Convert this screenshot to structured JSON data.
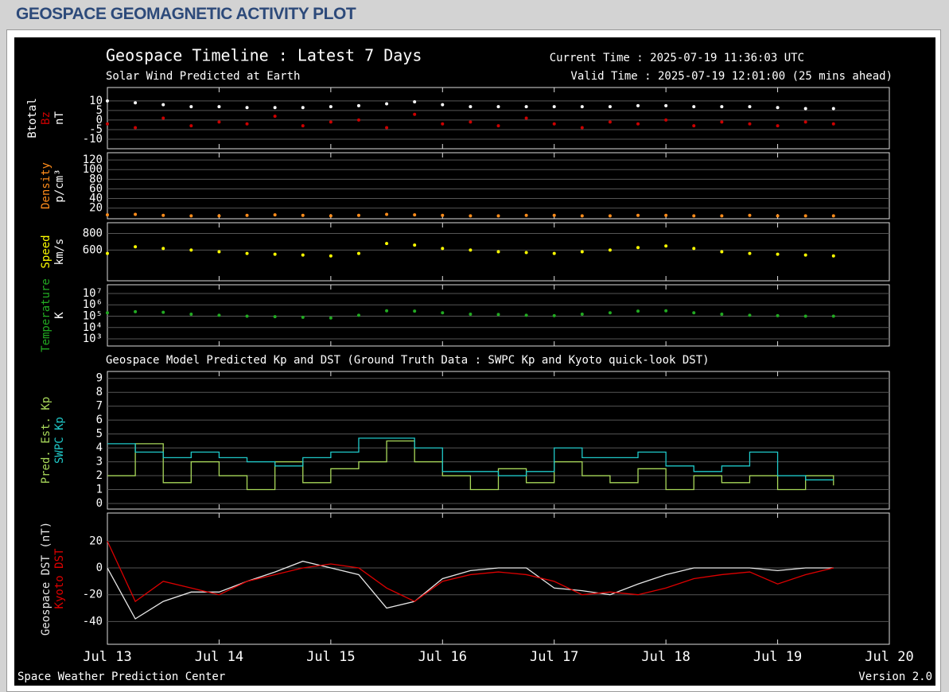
{
  "header": {
    "title": "GEOSPACE GEOMAGNETIC ACTIVITY PLOT"
  },
  "plot": {
    "title": "Geospace Timeline : Latest 7 Days",
    "subtitle": "Solar Wind Predicted at Earth",
    "current_time": "Current Time : 2025-07-19 11:36:03 UTC",
    "valid_time": "Valid Time : 2025-07-19 12:01:00 (25 mins ahead)",
    "section_title": "Geospace Model Predicted Kp and DST (Ground Truth Data : SWPC Kp and Kyoto quick-look DST)",
    "credit": "Space Weather Prediction Center",
    "version": "Version 2.0"
  },
  "chart_data": [
    {
      "type": "scatter",
      "ylabel": "nT",
      "xlim": [
        0,
        7
      ],
      "ylim": [
        -15,
        17
      ],
      "yticks": [
        10,
        5,
        0,
        -5,
        -10
      ],
      "grid": true,
      "x": [
        0,
        0.25,
        0.5,
        0.75,
        1,
        1.25,
        1.5,
        1.75,
        2,
        2.25,
        2.5,
        2.75,
        3,
        3.25,
        3.5,
        3.75,
        4,
        4.25,
        4.5,
        4.75,
        5,
        5.25,
        5.5,
        5.75,
        6,
        6.25,
        6.5
      ],
      "series": [
        {
          "name": "Btotal",
          "color": "#ffffff",
          "values": [
            10,
            9,
            8,
            7,
            7,
            6.5,
            6.5,
            6.5,
            7,
            7.5,
            8.5,
            9.5,
            8,
            7,
            7,
            7,
            7,
            7,
            7,
            7.5,
            7.5,
            7,
            7,
            7,
            6.5,
            6,
            6
          ]
        },
        {
          "name": "Bz",
          "color": "#cc0000",
          "values": [
            -2,
            -4,
            1,
            -3,
            -1,
            -2,
            2,
            -3,
            -1,
            0,
            -4,
            3,
            -2,
            -1,
            -3,
            1,
            -2,
            -4,
            -1,
            -2,
            0,
            -3,
            -1,
            -2,
            -3,
            -1,
            -2
          ]
        }
      ]
    },
    {
      "type": "scatter",
      "xlim": [
        0,
        7
      ],
      "ylim": [
        -2,
        135
      ],
      "yticks": [
        20,
        40,
        60,
        80,
        100,
        120
      ],
      "grid": true,
      "x": [
        0,
        0.25,
        0.5,
        0.75,
        1,
        1.25,
        1.5,
        1.75,
        2,
        2.25,
        2.5,
        2.75,
        3,
        3.25,
        3.5,
        3.75,
        4,
        4.25,
        4.5,
        4.75,
        5,
        5.25,
        5.5,
        5.75,
        6,
        6.25,
        6.5
      ],
      "ylabel": "p/cm³",
      "series": [
        {
          "name": "Density",
          "color": "#ff8c1a",
          "values": [
            6,
            7,
            5,
            4,
            4,
            5,
            6,
            5,
            4,
            5,
            7,
            6,
            5,
            4,
            4,
            5,
            5,
            4,
            4,
            5,
            5,
            4,
            4,
            5,
            4,
            4,
            4
          ]
        }
      ]
    },
    {
      "type": "scatter",
      "xlim": [
        0,
        7
      ],
      "ylim": [
        230,
        930
      ],
      "yticks": [
        600,
        800
      ],
      "grid": true,
      "x": [
        0,
        0.25,
        0.5,
        0.75,
        1,
        1.25,
        1.5,
        1.75,
        2,
        2.25,
        2.5,
        2.75,
        3,
        3.25,
        3.5,
        3.75,
        4,
        4.25,
        4.5,
        4.75,
        5,
        5.25,
        5.5,
        5.75,
        6,
        6.25,
        6.5
      ],
      "ylabel": "km/s",
      "series": [
        {
          "name": "Speed",
          "color": "#ffff00",
          "values": [
            560,
            640,
            620,
            600,
            580,
            560,
            550,
            540,
            530,
            560,
            680,
            660,
            620,
            600,
            580,
            570,
            560,
            580,
            600,
            630,
            650,
            620,
            580,
            560,
            550,
            540,
            530
          ]
        }
      ]
    },
    {
      "type": "scatter",
      "log": true,
      "xlim": [
        0,
        7
      ],
      "ylim": [
        234,
        59000000
      ],
      "yticks": [
        {
          "value": 10000000,
          "label": "10⁷"
        },
        {
          "value": 1000000,
          "label": "10⁶"
        },
        {
          "value": 100000,
          "label": "10⁵"
        },
        {
          "value": 10000,
          "label": "10⁴"
        },
        {
          "value": 1000,
          "label": "10³"
        }
      ],
      "grid": true,
      "x": [
        0,
        0.25,
        0.5,
        0.75,
        1,
        1.25,
        1.5,
        1.75,
        2,
        2.25,
        2.5,
        2.75,
        3,
        3.25,
        3.5,
        3.75,
        4,
        4.25,
        4.5,
        4.75,
        5,
        5.25,
        5.5,
        5.75,
        6,
        6.25,
        6.5
      ],
      "ylabel": "K",
      "series": [
        {
          "name": "Temperature",
          "color": "#22aa22",
          "values": [
            200000,
            250000,
            220000,
            150000,
            120000,
            100000,
            90000,
            80000,
            70000,
            120000,
            300000,
            280000,
            200000,
            150000,
            140000,
            120000,
            110000,
            150000,
            200000,
            280000,
            300000,
            200000,
            150000,
            120000,
            110000,
            100000,
            100000
          ]
        }
      ]
    },
    {
      "type": "line",
      "step": true,
      "xlim": [
        0,
        7
      ],
      "ylim": [
        -0.4,
        9.5
      ],
      "yticks": [
        0,
        1,
        2,
        3,
        4,
        5,
        6,
        7,
        8,
        9
      ],
      "grid": true,
      "x": [
        0,
        0.25,
        0.5,
        0.75,
        1,
        1.25,
        1.5,
        1.75,
        2,
        2.25,
        2.5,
        2.75,
        3,
        3.25,
        3.5,
        3.75,
        4,
        4.25,
        4.5,
        4.75,
        5,
        5.25,
        5.5,
        5.75,
        6,
        6.25,
        6.5
      ],
      "series": [
        {
          "name": "Pred. Est. Kp",
          "color": "#a8d85a",
          "values": [
            2,
            4.3,
            1.5,
            3,
            2,
            1,
            3,
            1.5,
            2.5,
            3,
            4.5,
            3,
            2,
            1,
            2.5,
            1.5,
            3,
            2,
            1.5,
            2.5,
            1,
            2,
            1.5,
            2,
            1,
            2,
            1.3
          ]
        },
        {
          "name": "SWPC Kp",
          "color": "#1fc8c8",
          "values": [
            4.3,
            3.7,
            3.3,
            3.7,
            3.3,
            3,
            2.7,
            3.3,
            3.7,
            4.7,
            4.7,
            4,
            2.3,
            2.3,
            2,
            2.3,
            4,
            3.3,
            3.3,
            3.7,
            2.7,
            2.3,
            2.7,
            3.7,
            2,
            1.7,
            1.7
          ]
        }
      ]
    },
    {
      "type": "line",
      "xlim": [
        0,
        7
      ],
      "ylim": [
        -57,
        41
      ],
      "yticks": [
        20,
        0,
        -20,
        -40
      ],
      "grid": true,
      "xticks": [
        {
          "value": 0,
          "label": "Jul 13"
        },
        {
          "value": 1,
          "label": "Jul 14"
        },
        {
          "value": 2,
          "label": "Jul 15"
        },
        {
          "value": 3,
          "label": "Jul 16"
        },
        {
          "value": 4,
          "label": "Jul 17"
        },
        {
          "value": 5,
          "label": "Jul 18"
        },
        {
          "value": 6,
          "label": "Jul 19"
        },
        {
          "value": 7,
          "label": "Jul 20"
        }
      ],
      "x": [
        0,
        0.25,
        0.5,
        0.75,
        1,
        1.25,
        1.5,
        1.75,
        2,
        2.25,
        2.5,
        2.75,
        3,
        3.25,
        3.5,
        3.75,
        4,
        4.25,
        4.5,
        4.75,
        5,
        5.25,
        5.5,
        5.75,
        6,
        6.25,
        6.5
      ],
      "series": [
        {
          "name": "Geospace DST (nT)",
          "color": "#e8e8e8",
          "values": [
            0,
            -38,
            -25,
            -18,
            -18,
            -10,
            -3,
            5,
            0,
            -5,
            -30,
            -25,
            -8,
            -2,
            0,
            0,
            -15,
            -17,
            -20,
            -12,
            -5,
            0,
            0,
            0,
            -2,
            0,
            0
          ]
        },
        {
          "name": "Kyoto DST",
          "color": "#dd0000",
          "values": [
            20,
            -25,
            -10,
            -15,
            -20,
            -10,
            -5,
            0,
            3,
            0,
            -15,
            -25,
            -10,
            -5,
            -3,
            -5,
            -10,
            -20,
            -18,
            -20,
            -15,
            -8,
            -5,
            -3,
            -12,
            -5,
            0
          ]
        }
      ]
    }
  ]
}
